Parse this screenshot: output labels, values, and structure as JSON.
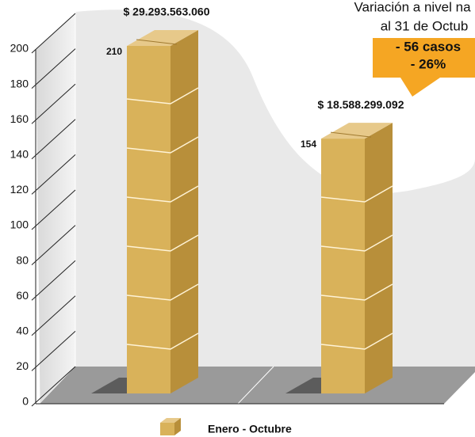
{
  "chart_data": {
    "type": "bar",
    "categories": [
      null,
      null
    ],
    "series": [
      {
        "name": "Enero - Octubre",
        "color": "#d9b25a",
        "values": [
          210,
          154
        ]
      }
    ],
    "amount_labels": [
      "$ 29.293.563.060",
      "$ 18.588.299.092"
    ],
    "annotation": [
      "Variación a nivel na",
      "al 31 de Octub",
      "- 56 casos",
      "- 26%"
    ],
    "ylim": [
      0,
      200
    ],
    "yticks": [
      0,
      20,
      40,
      60,
      80,
      100,
      120,
      140,
      160,
      180,
      200
    ]
  }
}
